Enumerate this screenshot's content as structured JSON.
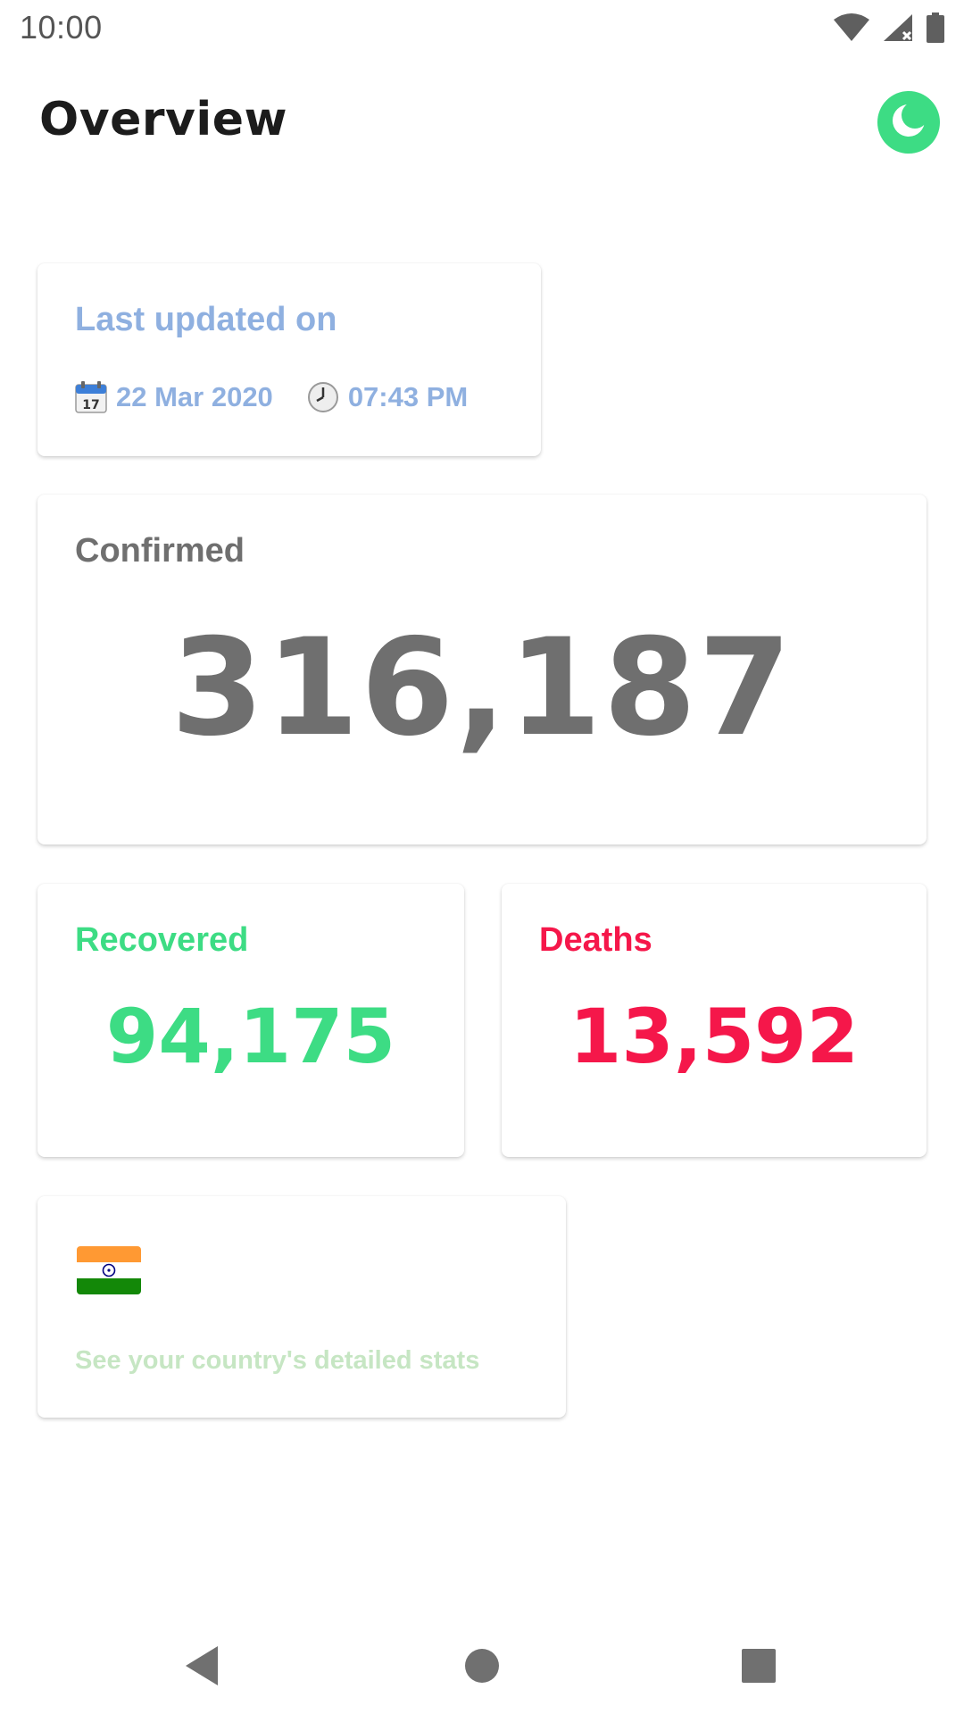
{
  "status_bar": {
    "time": "10:00",
    "icons": [
      "wifi-icon",
      "signal-icon",
      "battery-icon"
    ]
  },
  "header": {
    "title": "Overview",
    "theme_toggle_icon": "moon-icon"
  },
  "last_updated": {
    "title": "Last updated on",
    "date": "22 Mar 2020",
    "time": "07:43 PM",
    "date_icon": "calendar-icon",
    "time_icon": "clock-icon"
  },
  "confirmed": {
    "label": "Confirmed",
    "value": "316,187"
  },
  "recovered": {
    "label": "Recovered",
    "value": "94,175"
  },
  "deaths": {
    "label": "Deaths",
    "value": "13,592"
  },
  "country": {
    "flag_icon": "india-flag-icon",
    "link_text": "See your country's detailed stats"
  },
  "nav_bar": {
    "buttons": [
      "back-icon",
      "home-icon",
      "recents-icon"
    ]
  },
  "colors": {
    "accent_green": "#3ddc84",
    "death_red": "#f5174a",
    "updated_blue": "#8fb0e0",
    "confirmed_gray": "#6f6f6f",
    "link_green": "#c6e6c3"
  }
}
